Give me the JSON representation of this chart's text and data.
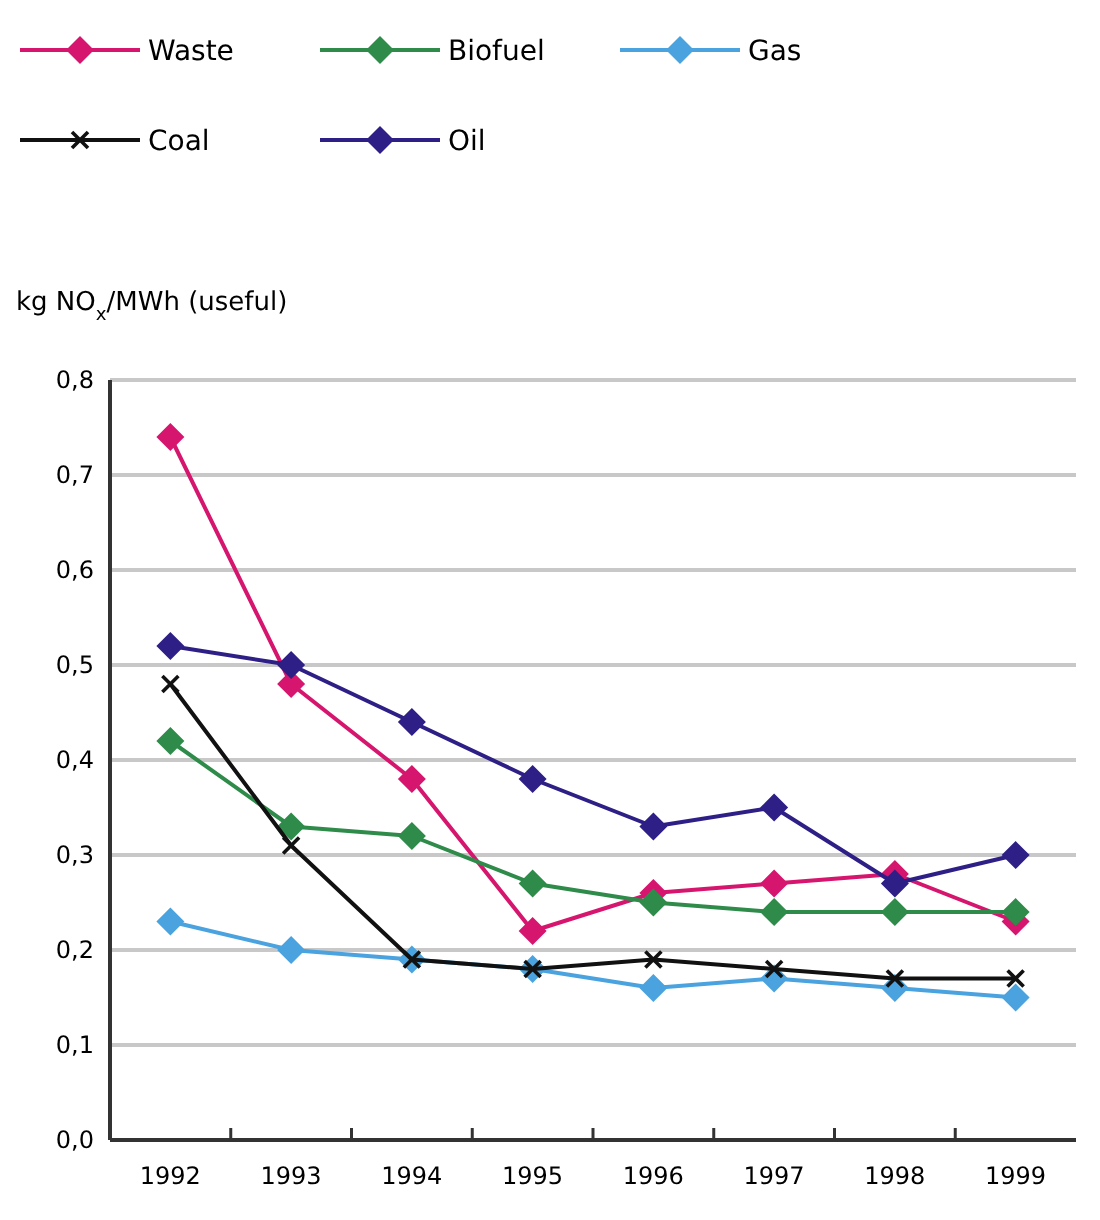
{
  "chart_data": {
    "type": "line",
    "ylabel": "kg NO$_{x}$/MWh (useful)",
    "categories": [
      "1992",
      "1993",
      "1994",
      "1995",
      "1996",
      "1997",
      "1998",
      "1999"
    ],
    "series": [
      {
        "name": "Waste",
        "color": "#d6166e",
        "marker": "diamond",
        "values": [
          0.74,
          0.48,
          0.38,
          0.22,
          0.26,
          0.27,
          0.28,
          0.23
        ]
      },
      {
        "name": "Biofuel",
        "color": "#2e8b4a",
        "marker": "diamond",
        "values": [
          0.42,
          0.33,
          0.32,
          0.27,
          0.25,
          0.24,
          0.24,
          0.24
        ]
      },
      {
        "name": "Gas",
        "color": "#4aa3df",
        "marker": "diamond",
        "values": [
          0.23,
          0.2,
          0.19,
          0.18,
          0.16,
          0.17,
          0.16,
          0.15
        ]
      },
      {
        "name": "Coal",
        "color": "#111111",
        "marker": "cross",
        "values": [
          0.48,
          0.31,
          0.19,
          0.18,
          0.19,
          0.18,
          0.17,
          0.17
        ]
      },
      {
        "name": "Oil",
        "color": "#2e1f86",
        "marker": "diamond",
        "values": [
          0.52,
          0.5,
          0.44,
          0.38,
          0.33,
          0.35,
          0.27,
          0.3
        ]
      }
    ],
    "ylim": [
      0,
      0.8
    ],
    "yticks": [
      {
        "value": 0,
        "label": "0,0"
      },
      {
        "value": 0.1,
        "label": "0,1"
      },
      {
        "value": 0.2,
        "label": "0,2"
      },
      {
        "value": 0.3,
        "label": "0,3"
      },
      {
        "value": 0.4,
        "label": "0,4"
      },
      {
        "value": 0.5,
        "label": "0,5"
      },
      {
        "value": 0.6,
        "label": "0,6"
      },
      {
        "value": 0.7,
        "label": "0,7"
      },
      {
        "value": 0.8,
        "label": "0,8"
      }
    ],
    "grid": "y",
    "legend": "top",
    "line_style": "solid"
  }
}
